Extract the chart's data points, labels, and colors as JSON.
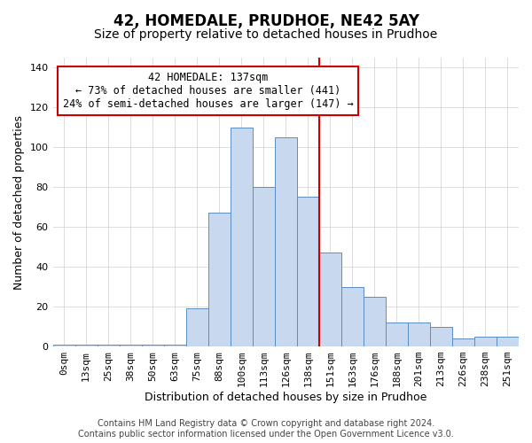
{
  "title": "42, HOMEDALE, PRUDHOE, NE42 5AY",
  "subtitle": "Size of property relative to detached houses in Prudhoe",
  "xlabel": "Distribution of detached houses by size in Prudhoe",
  "ylabel": "Number of detached properties",
  "bar_labels": [
    "0sqm",
    "13sqm",
    "25sqm",
    "38sqm",
    "50sqm",
    "63sqm",
    "75sqm",
    "88sqm",
    "100sqm",
    "113sqm",
    "126sqm",
    "138sqm",
    "151sqm",
    "163sqm",
    "176sqm",
    "188sqm",
    "201sqm",
    "213sqm",
    "226sqm",
    "238sqm",
    "251sqm"
  ],
  "bar_heights": [
    1,
    1,
    1,
    1,
    1,
    1,
    19,
    67,
    110,
    80,
    105,
    75,
    47,
    30,
    25,
    12,
    12,
    10,
    4,
    5,
    5
  ],
  "bar_color": "#c8d9ef",
  "bar_edge_color": "#5b8ec4",
  "vline_color": "#cc0000",
  "annotation_text": "42 HOMEDALE: 137sqm\n← 73% of detached houses are smaller (441)\n24% of semi-detached houses are larger (147) →",
  "annotation_box_color": "#ffffff",
  "annotation_box_edge": "#cc0000",
  "footer_line1": "Contains HM Land Registry data © Crown copyright and database right 2024.",
  "footer_line2": "Contains public sector information licensed under the Open Government Licence v3.0.",
  "ylim": [
    0,
    145
  ],
  "yticks": [
    0,
    20,
    40,
    60,
    80,
    100,
    120,
    140
  ],
  "grid_color": "#d0d0d0",
  "title_fontsize": 12,
  "subtitle_fontsize": 10,
  "footer_fontsize": 7,
  "label_fontsize": 8,
  "ylabel_fontsize": 9,
  "xlabel_fontsize": 9
}
